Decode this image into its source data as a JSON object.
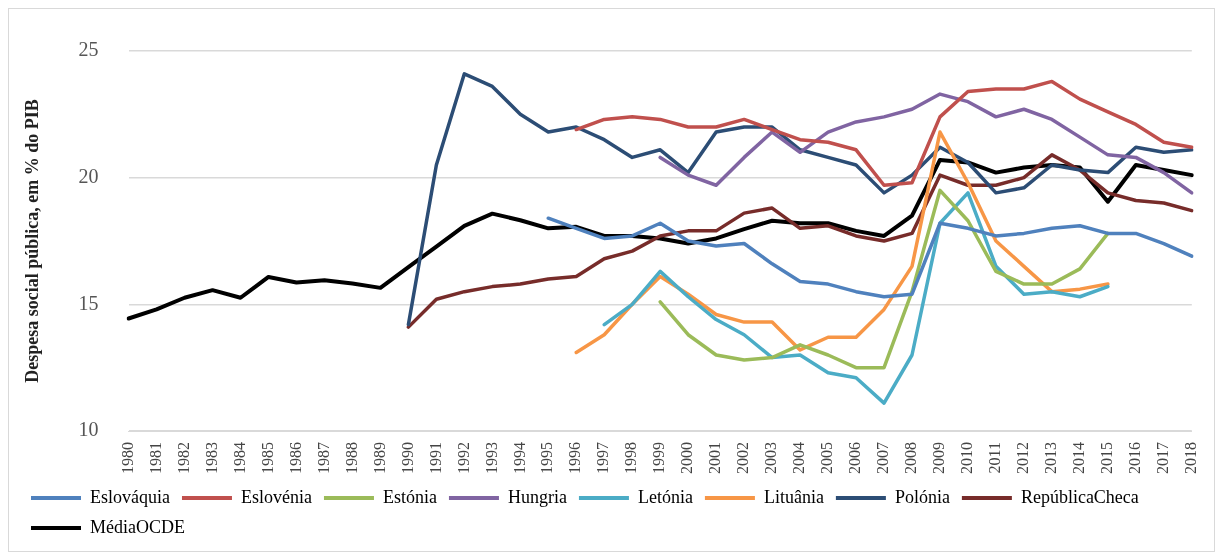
{
  "chart_data": {
    "type": "line",
    "ylabel": "Despesa social pública, em % do PIB",
    "categories": [
      "1980",
      "1981",
      "1982",
      "1983",
      "1984",
      "1985",
      "1986",
      "1987",
      "1988",
      "1989",
      "1990",
      "1991",
      "1992",
      "1993",
      "1994",
      "1995",
      "1996",
      "1997",
      "1998",
      "1999",
      "2000",
      "2001",
      "2002",
      "2003",
      "2004",
      "2005",
      "2006",
      "2007",
      "2008",
      "2009",
      "2010",
      "2011",
      "2012",
      "2013",
      "2014",
      "2015",
      "2016",
      "2017",
      "2018"
    ],
    "ylim": [
      10,
      25
    ],
    "yticks": [
      10,
      15,
      20,
      25
    ],
    "grid": "y",
    "legend": "bottom",
    "marker": "none",
    "line_style": "solid",
    "series": [
      {
        "name": "Eslováquia",
        "color": "#4f81bd",
        "values": [
          null,
          null,
          null,
          null,
          null,
          null,
          null,
          null,
          null,
          null,
          null,
          null,
          null,
          null,
          null,
          18.4,
          18.0,
          17.6,
          17.7,
          18.2,
          17.5,
          17.3,
          17.4,
          16.6,
          15.9,
          15.8,
          15.5,
          15.3,
          15.4,
          18.2,
          18.0,
          17.7,
          17.8,
          18.0,
          18.1,
          17.8,
          17.8,
          17.4,
          16.9
        ]
      },
      {
        "name": "Eslovénia",
        "color": "#c0504d",
        "values": [
          null,
          null,
          null,
          null,
          null,
          null,
          null,
          null,
          null,
          null,
          null,
          null,
          null,
          null,
          null,
          null,
          21.9,
          22.3,
          22.4,
          22.3,
          22.0,
          22.0,
          22.3,
          21.9,
          21.5,
          21.4,
          21.1,
          19.7,
          19.8,
          22.4,
          23.4,
          23.5,
          23.5,
          23.8,
          23.1,
          22.6,
          22.1,
          21.4,
          21.2
        ]
      },
      {
        "name": "Estónia",
        "color": "#9bbb59",
        "values": [
          null,
          null,
          null,
          null,
          null,
          null,
          null,
          null,
          null,
          null,
          null,
          null,
          null,
          null,
          null,
          null,
          null,
          null,
          null,
          15.1,
          13.8,
          13.0,
          12.8,
          12.9,
          13.4,
          13.0,
          12.5,
          12.5,
          15.5,
          19.5,
          18.3,
          16.3,
          15.8,
          15.8,
          16.4,
          17.8,
          null,
          null,
          null
        ]
      },
      {
        "name": "Hungria",
        "color": "#8064a2",
        "values": [
          null,
          null,
          null,
          null,
          null,
          null,
          null,
          null,
          null,
          null,
          null,
          null,
          null,
          null,
          null,
          null,
          null,
          null,
          null,
          20.8,
          20.1,
          19.7,
          20.8,
          21.8,
          21.0,
          21.8,
          22.2,
          22.4,
          22.7,
          23.3,
          23.0,
          22.4,
          22.7,
          22.3,
          21.6,
          20.9,
          20.8,
          20.2,
          19.4
        ]
      },
      {
        "name": "Letónia",
        "color": "#4bacc6",
        "values": [
          null,
          null,
          null,
          null,
          null,
          null,
          null,
          null,
          null,
          null,
          null,
          null,
          null,
          null,
          null,
          null,
          null,
          14.2,
          15.0,
          16.3,
          15.3,
          14.4,
          13.8,
          12.9,
          13.0,
          12.3,
          12.1,
          11.1,
          13.0,
          18.2,
          19.4,
          16.5,
          15.4,
          15.5,
          15.3,
          15.7,
          null,
          null,
          null
        ]
      },
      {
        "name": "Lituânia",
        "color": "#f79646",
        "values": [
          null,
          null,
          null,
          null,
          null,
          null,
          null,
          null,
          null,
          null,
          null,
          null,
          null,
          null,
          null,
          null,
          13.1,
          13.8,
          15.0,
          16.1,
          15.4,
          14.6,
          14.3,
          14.3,
          13.2,
          13.7,
          13.7,
          14.8,
          16.5,
          21.8,
          19.8,
          17.5,
          16.5,
          15.5,
          15.6,
          15.8,
          null,
          null,
          null
        ]
      },
      {
        "name": "Polónia",
        "color": "#2c4d75",
        "values": [
          null,
          null,
          null,
          null,
          null,
          null,
          null,
          null,
          null,
          null,
          14.2,
          20.5,
          24.1,
          23.6,
          22.5,
          21.8,
          22.0,
          21.5,
          20.8,
          21.1,
          20.2,
          21.8,
          22.0,
          22.0,
          21.1,
          20.8,
          20.5,
          19.4,
          20.1,
          21.2,
          20.6,
          19.4,
          19.6,
          20.5,
          20.3,
          20.2,
          21.2,
          21.0,
          21.1
        ]
      },
      {
        "name": "RepúblicaCheca",
        "color": "#772c2a",
        "values": [
          null,
          null,
          null,
          null,
          null,
          null,
          null,
          null,
          null,
          null,
          14.1,
          15.2,
          15.5,
          15.7,
          15.8,
          16.0,
          16.1,
          16.8,
          17.1,
          17.7,
          17.9,
          17.9,
          18.6,
          18.8,
          18.0,
          18.1,
          17.7,
          17.5,
          17.8,
          20.1,
          19.7,
          19.7,
          20.0,
          20.9,
          20.3,
          19.4,
          19.1,
          19.0,
          18.7
        ]
      },
      {
        "name": "MédiaOCDE",
        "color": "#000000",
        "values": [
          14.44,
          14.8,
          15.26,
          15.56,
          15.26,
          16.08,
          15.86,
          15.95,
          15.82,
          15.65,
          16.47,
          17.28,
          18.1,
          18.58,
          18.32,
          18.0,
          18.06,
          17.7,
          17.7,
          17.6,
          17.4,
          17.6,
          17.97,
          18.3,
          18.2,
          18.2,
          17.9,
          17.7,
          18.5,
          20.7,
          20.6,
          20.2,
          20.4,
          20.5,
          20.4,
          19.05,
          20.5,
          20.3,
          20.1
        ]
      }
    ]
  }
}
